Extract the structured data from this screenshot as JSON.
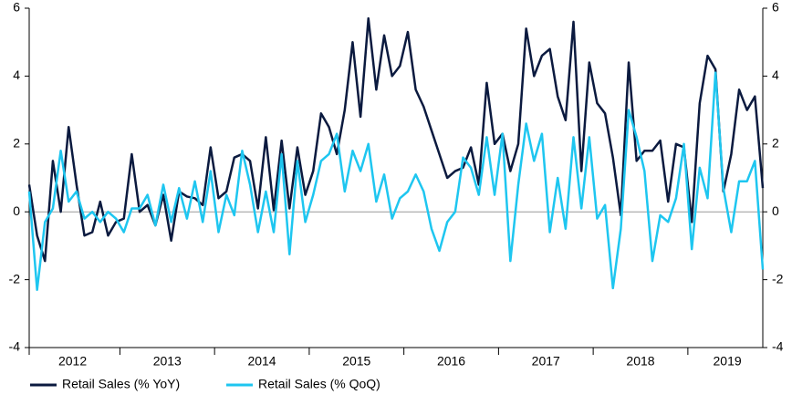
{
  "chart_data": {
    "type": "line",
    "x_labels": [
      "2012",
      "2013",
      "2014",
      "2015",
      "2016",
      "2017",
      "2018",
      "2019"
    ],
    "series": [
      {
        "name": "Retail Sales (% YoY)",
        "color": "#0b1a3f",
        "values": [
          0.8,
          -0.7,
          -1.45,
          1.5,
          0.0,
          2.5,
          0.8,
          -0.7,
          -0.6,
          0.3,
          -0.7,
          -0.3,
          -0.2,
          1.7,
          0.0,
          0.2,
          -0.4,
          0.5,
          -0.85,
          0.6,
          0.45,
          0.4,
          0.2,
          1.9,
          0.4,
          0.6,
          1.6,
          1.7,
          1.5,
          0.1,
          2.2,
          0.05,
          2.1,
          0.1,
          1.9,
          0.5,
          1.2,
          2.9,
          2.5,
          1.7,
          3.0,
          5.0,
          2.8,
          5.7,
          3.6,
          5.2,
          4.0,
          4.3,
          5.3,
          3.6,
          3.1,
          2.4,
          1.7,
          1.0,
          1.2,
          1.3,
          1.9,
          0.8,
          3.8,
          2.0,
          2.3,
          1.2,
          2.0,
          5.4,
          4.0,
          4.6,
          4.8,
          3.4,
          2.7,
          5.6,
          1.2,
          4.4,
          3.2,
          2.9,
          1.6,
          -0.1,
          4.4,
          1.5,
          1.8,
          1.8,
          2.1,
          0.3,
          2.0,
          1.9,
          -0.3,
          3.2,
          4.6,
          4.2,
          0.6,
          1.7,
          3.6,
          3.0,
          3.4,
          0.7
        ]
      },
      {
        "name": "Retail Sales (% QoQ)",
        "color": "#1ec6f0",
        "values": [
          0.6,
          -2.3,
          -0.3,
          0.1,
          1.8,
          0.3,
          0.6,
          -0.2,
          0.0,
          -0.3,
          0.0,
          -0.2,
          -0.6,
          0.1,
          0.1,
          0.5,
          -0.4,
          0.8,
          -0.3,
          0.7,
          -0.2,
          0.9,
          -0.3,
          1.2,
          -0.6,
          0.5,
          -0.1,
          1.8,
          0.8,
          -0.6,
          0.6,
          -0.6,
          1.7,
          -1.25,
          1.5,
          -0.3,
          0.5,
          1.5,
          1.7,
          2.3,
          0.6,
          1.8,
          1.2,
          2.0,
          0.3,
          1.1,
          -0.2,
          0.4,
          0.6,
          1.1,
          0.6,
          -0.5,
          -1.15,
          -0.3,
          0.0,
          1.6,
          1.3,
          0.5,
          2.2,
          0.5,
          2.3,
          -1.45,
          0.8,
          2.6,
          1.5,
          2.3,
          -0.6,
          1.0,
          -0.5,
          2.2,
          0.1,
          2.2,
          -0.2,
          0.2,
          -2.25,
          -0.5,
          3.0,
          2.2,
          1.2,
          -1.45,
          -0.1,
          -0.3,
          0.4,
          2.0,
          -1.1,
          1.3,
          0.4,
          4.1,
          0.7,
          -0.6,
          0.9,
          0.9,
          1.5,
          -1.7
        ]
      }
    ],
    "ylim": [
      -4,
      6
    ],
    "yticks": [
      -4,
      -2,
      0,
      2,
      4,
      6
    ],
    "y2lim": [
      -4,
      6
    ],
    "y2ticks": [
      -4,
      -2,
      0,
      2,
      4,
      6
    ],
    "legend": "bottom"
  }
}
